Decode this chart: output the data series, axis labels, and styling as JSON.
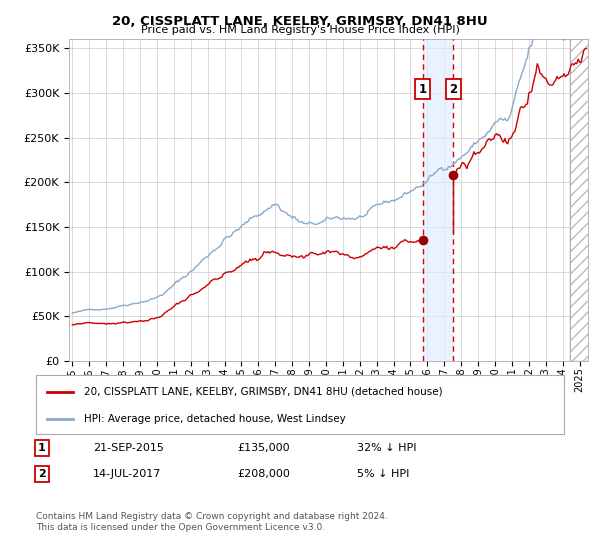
{
  "title1": "20, CISSPLATT LANE, KEELBY, GRIMSBY, DN41 8HU",
  "title2": "Price paid vs. HM Land Registry's House Price Index (HPI)",
  "legend_line1": "20, CISSPLATT LANE, KEELBY, GRIMSBY, DN41 8HU (detached house)",
  "legend_line2": "HPI: Average price, detached house, West Lindsey",
  "footnote": "Contains HM Land Registry data © Crown copyright and database right 2024.\nThis data is licensed under the Open Government Licence v3.0.",
  "property_color": "#cc0000",
  "hpi_color": "#88aacc",
  "sale1_date_num": 2015.72,
  "sale2_date_num": 2017.53,
  "sale1_price": 135000,
  "sale2_price": 208000,
  "ylim_max": 360000,
  "xlim_start": 1994.8,
  "xlim_end": 2025.5,
  "annotations": [
    [
      "1",
      "21-SEP-2015",
      "£135,000",
      "32% ↓ HPI"
    ],
    [
      "2",
      "14-JUL-2017",
      "£208,000",
      "5% ↓ HPI"
    ]
  ]
}
